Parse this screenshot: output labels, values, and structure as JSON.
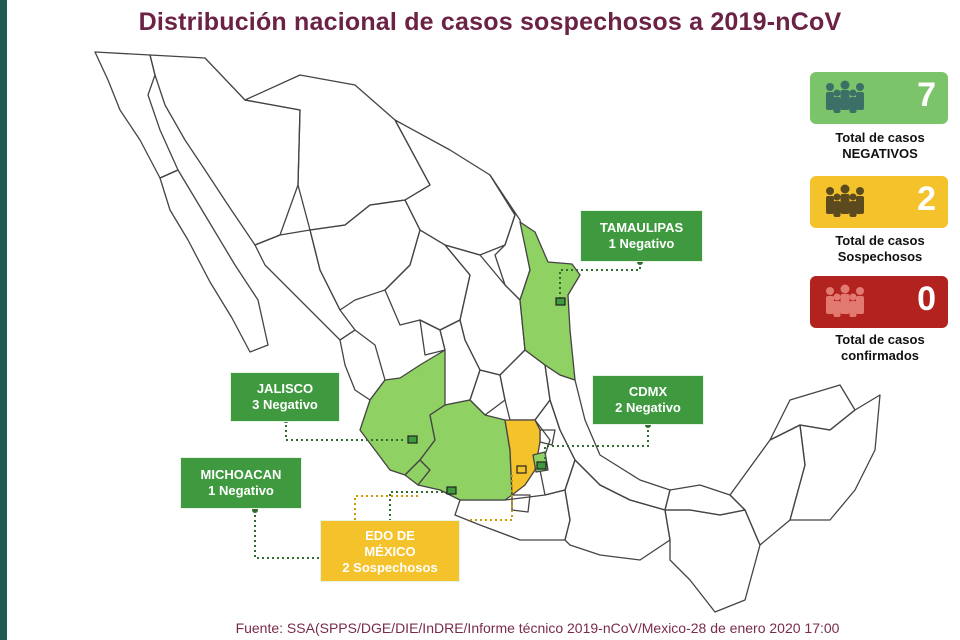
{
  "title": "Distribución nacional de casos sospechosos a 2019-nCoV",
  "source": "Fuente: SSA(SPPS/DGE/DIE/InDRE/Informe técnico 2019-nCoV/Mexico-28 de enero 2020 17:00",
  "colors": {
    "negative": "#8fd163",
    "negative_box": "#3f9a3f",
    "suspect": "#f4c22a",
    "confirmed": "#b2221f",
    "title": "#6b2244"
  },
  "stats": [
    {
      "value": "7",
      "label1": "Total de casos",
      "label2": "NEGATIVOS",
      "color": "#7cc46a",
      "icon": "people-group-icon"
    },
    {
      "value": "2",
      "label1": "Total de casos",
      "label2": "Sospechosos",
      "color": "#f4c22a",
      "icon": "people-group-icon"
    },
    {
      "value": "0",
      "label1": "Total de casos",
      "label2": "confirmados",
      "color": "#b2221f",
      "icon": "people-group-icon"
    }
  ],
  "callouts": {
    "tamaulipas": {
      "l1": "TAMAULIPAS",
      "l2": "1  Negativo"
    },
    "jalisco": {
      "l1": "JALISCO",
      "l2": "3 Negativo"
    },
    "cdmx": {
      "l1": "CDMX",
      "l2": "2 Negativo"
    },
    "michoacan": {
      "l1": "MICHOACAN",
      "l2": "1 Negativo"
    },
    "edomex": {
      "l1": "EDO DE",
      "l2": "MÉXICO",
      "l3": "2 Sospechosos"
    }
  }
}
